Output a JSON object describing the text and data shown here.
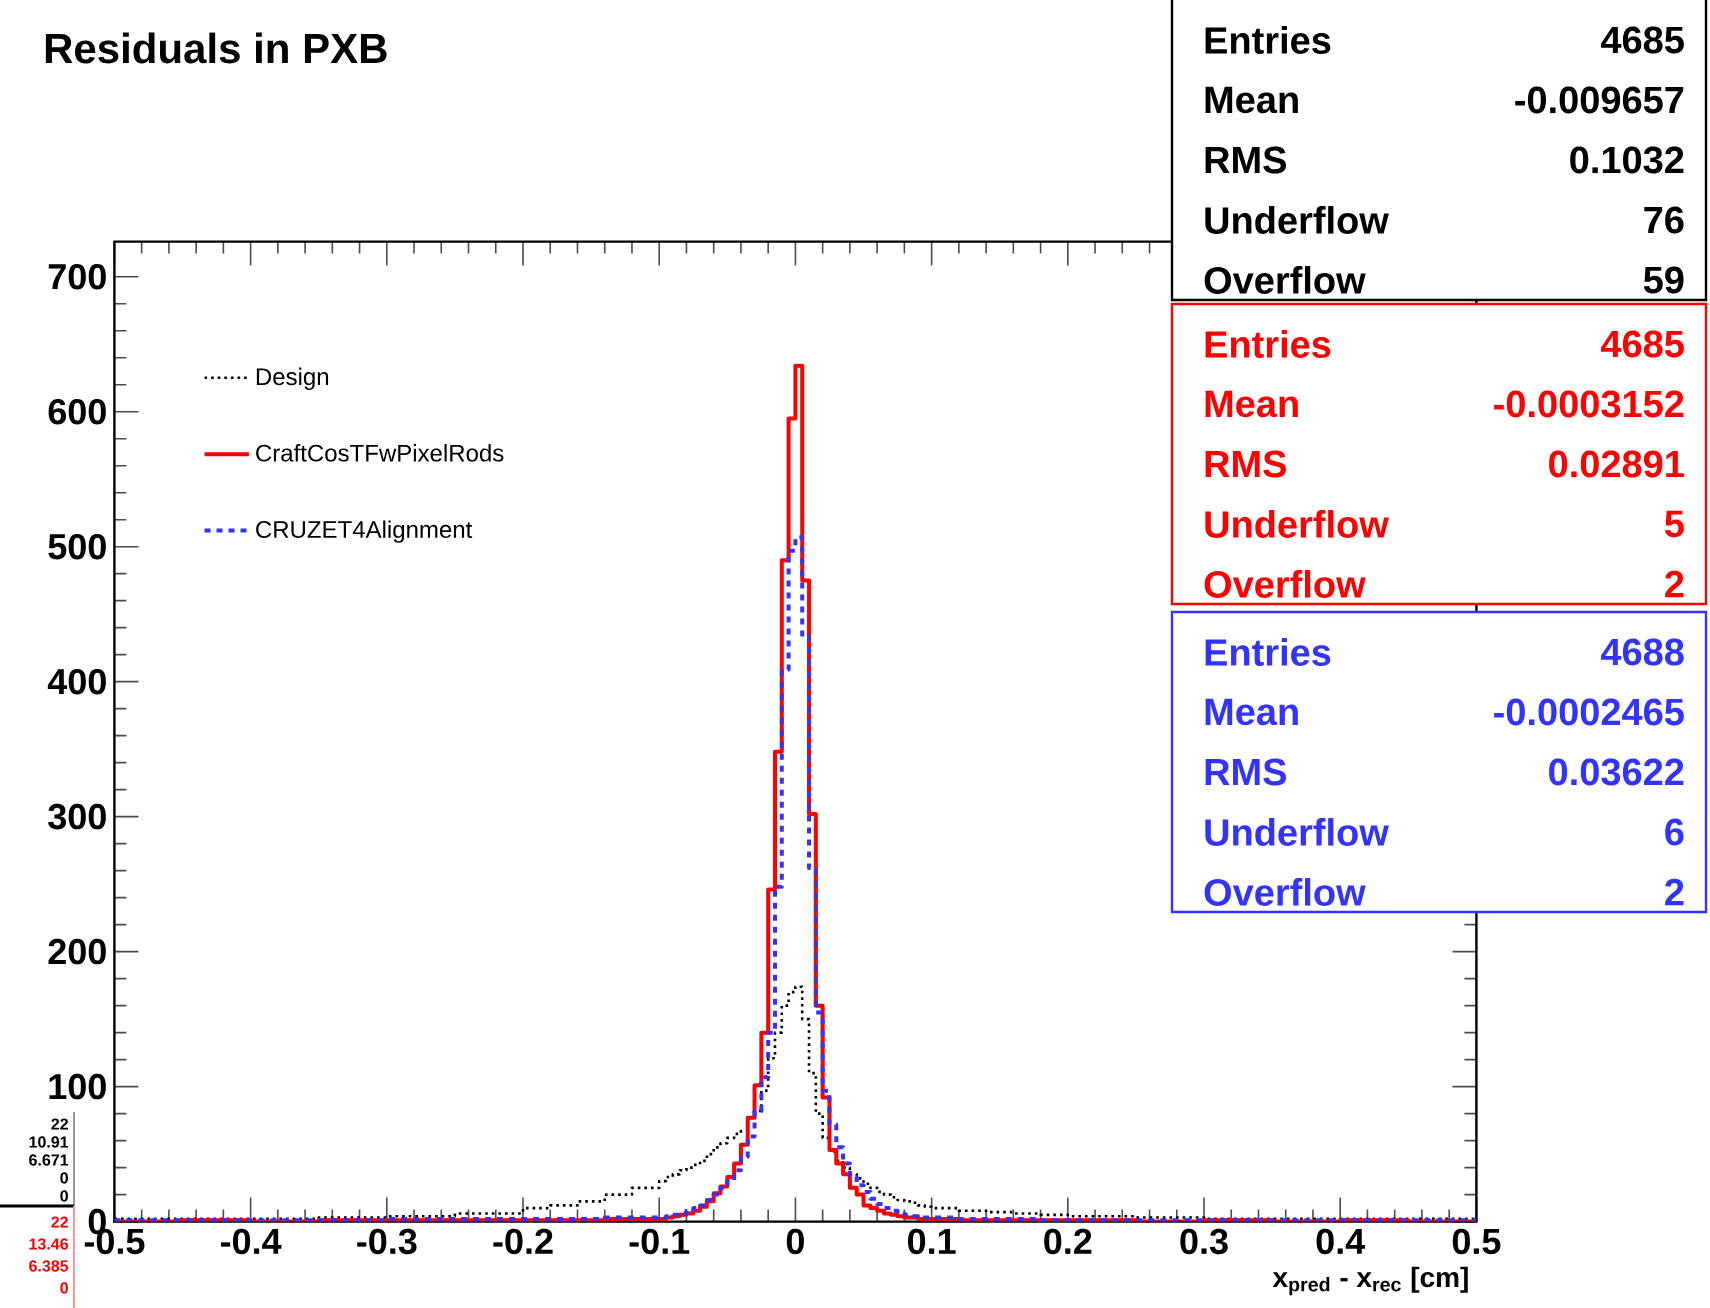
{
  "chart_data": {
    "type": "histogram",
    "title": "Residuals in PXB",
    "xlabel": "x$_{pred}$ - x$_{rec}$ [cm]",
    "bins": [
      -0.5,
      -0.45,
      -0.4,
      -0.35,
      -0.3,
      -0.25,
      -0.2,
      -0.18,
      -0.16,
      -0.14,
      -0.12,
      -0.1,
      -0.095,
      -0.09,
      -0.085,
      -0.08,
      -0.075,
      -0.07,
      -0.065,
      -0.06,
      -0.055,
      -0.05,
      -0.045,
      -0.04,
      -0.035,
      -0.03,
      -0.025,
      -0.02,
      -0.015,
      -0.01,
      -0.005,
      0,
      0.005,
      0.01,
      0.015,
      0.02,
      0.025,
      0.03,
      0.035,
      0.04,
      0.045,
      0.05,
      0.055,
      0.06,
      0.065,
      0.07,
      0.075,
      0.08,
      0.085,
      0.09,
      0.095,
      0.1,
      0.12,
      0.14,
      0.16,
      0.18,
      0.2,
      0.25,
      0.3,
      0.35,
      0.4,
      0.45,
      0.5
    ],
    "series": [
      {
        "name": "Design",
        "color": "#000000",
        "line_style": "dotted",
        "values": [
          2,
          2,
          2,
          3,
          4,
          6,
          10,
          12,
          15,
          20,
          25,
          30,
          33,
          35,
          38,
          40,
          42,
          45,
          50,
          55,
          58,
          62,
          65,
          67,
          77,
          82,
          97,
          121,
          140,
          160,
          170,
          174,
          150,
          110,
          80,
          62,
          52,
          45,
          40,
          35,
          32,
          28,
          25,
          22,
          20,
          18,
          16,
          15,
          14,
          12,
          11,
          10,
          8,
          7,
          6,
          5,
          4,
          3,
          2,
          2,
          2,
          2
        ]
      },
      {
        "name": "CraftCosTFwPixelRods",
        "color": "#ff0000",
        "line_style": "solid",
        "values": [
          0,
          1,
          0,
          1,
          1,
          1,
          1,
          1,
          1,
          2,
          2,
          2,
          3,
          4,
          5,
          6,
          8,
          11,
          15,
          21,
          26,
          33,
          43,
          57,
          77,
          101,
          140,
          246,
          348,
          490,
          595,
          634,
          475,
          302,
          160,
          92,
          53,
          43,
          35,
          25,
          20,
          12,
          10,
          8,
          6,
          5,
          4,
          3,
          3,
          2,
          2,
          2,
          1,
          1,
          1,
          1,
          1,
          0,
          1,
          0,
          1,
          0
        ]
      },
      {
        "name": "CRUZET4Alignment",
        "color": "#3333ff",
        "line_style": "dashed",
        "values": [
          1,
          1,
          1,
          1,
          2,
          2,
          2,
          2,
          2,
          3,
          3,
          3,
          4,
          5,
          6,
          8,
          10,
          12,
          16,
          20,
          25,
          30,
          38,
          48,
          63,
          82,
          107,
          140,
          248,
          409,
          497,
          507,
          433,
          262,
          155,
          97,
          72,
          55,
          43,
          33,
          27,
          22,
          17,
          13,
          10,
          8,
          6,
          5,
          4,
          3,
          3,
          3,
          2,
          2,
          2,
          1,
          1,
          1,
          1,
          1,
          1,
          1
        ]
      }
    ],
    "xlim": [
      -0.5,
      0.5
    ],
    "ylim": [
      0,
      726
    ],
    "xticks": [
      -0.5,
      -0.4,
      -0.3,
      -0.2,
      -0.1,
      0,
      0.1,
      0.2,
      0.3,
      0.4,
      0.5
    ],
    "yticks": [
      0,
      100,
      200,
      300,
      400,
      500,
      600,
      700
    ],
    "legend": "top left",
    "annotations": [
      "Entries",
      "4685",
      "Mean",
      "-0.009657",
      "RMS",
      "0.1032",
      "Underflow",
      "76",
      "Overflow",
      "59",
      "Entries",
      "4685",
      "Mean",
      "-0.0003152",
      "RMS",
      "0.02891",
      "Underflow",
      "5",
      "Overflow",
      "2",
      "Entries",
      "4688",
      "Mean",
      "-0.0002465",
      "RMS",
      "0.03622",
      "Underflow",
      "6",
      "Overflow",
      "2",
      "22",
      "10.91",
      "6.671",
      "0",
      "0",
      "22",
      "13.46",
      "6.385",
      "0"
    ]
  }
}
